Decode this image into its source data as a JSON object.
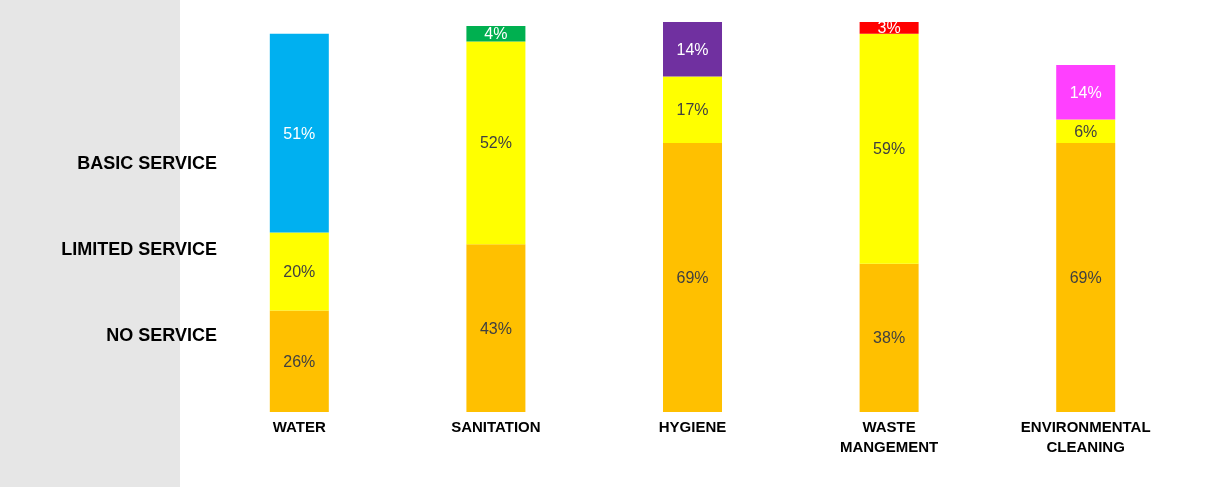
{
  "chart_data": {
    "type": "bar",
    "stacked": true,
    "legend": "left",
    "categories": [
      "WATER",
      "SANITATION",
      "HYGIENE",
      "WASTE MANGEMENT",
      "ENVIRONMENTAL CLEANING"
    ],
    "series": [
      {
        "name": "NO SERVICE",
        "color": "#ffc000",
        "values": [
          26,
          43,
          69,
          38,
          69
        ],
        "value_labels": [
          "26%",
          "43%",
          "69%",
          "38%",
          "69%"
        ]
      },
      {
        "name": "LIMITED SERVICE",
        "color": "#ffff00",
        "values": [
          20,
          52,
          17,
          59,
          6
        ],
        "value_labels": [
          "20%",
          "52%",
          "17%",
          "59%",
          "6%"
        ]
      },
      {
        "name": "BASIC SERVICE",
        "colors": [
          "#00b0f0",
          "#00b050",
          "#7030a0",
          "#ff0000",
          "#ff40ff"
        ],
        "values": [
          51,
          4,
          14,
          3,
          14
        ],
        "value_labels": [
          "51%",
          "4%",
          "14%",
          "3%",
          "14%"
        ]
      }
    ]
  }
}
